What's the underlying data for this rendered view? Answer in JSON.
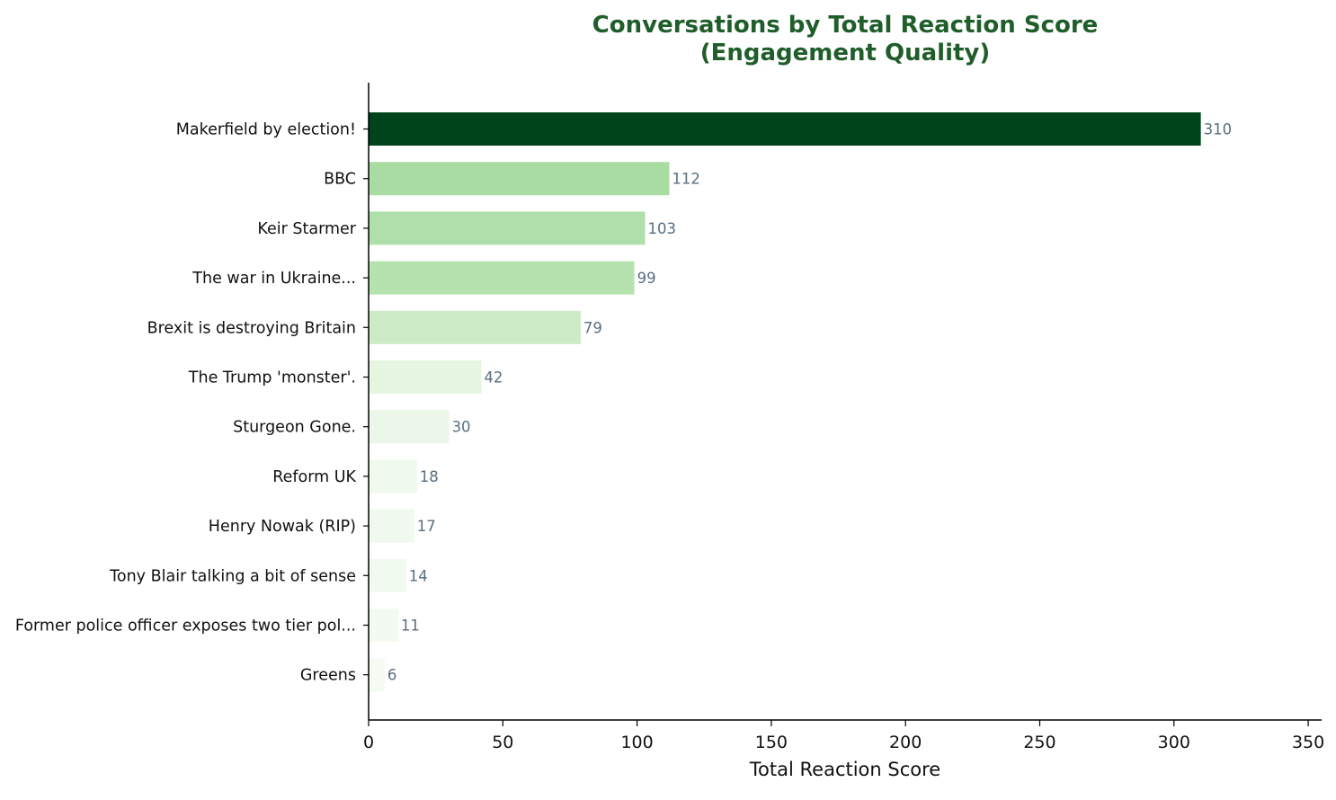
{
  "chart_data": {
    "type": "bar",
    "orientation": "horizontal",
    "title_lines": [
      "Conversations by Total Reaction Score",
      "(Engagement Quality)"
    ],
    "xlabel": "Total Reaction Score",
    "ylabel": "",
    "xlim": [
      0,
      355
    ],
    "xticks": [
      0,
      50,
      100,
      150,
      200,
      250,
      300,
      350
    ],
    "categories": [
      "Makerfield by election!",
      "BBC",
      "Keir Starmer",
      "The war in Ukraine...",
      "Brexit is destroying Britain",
      "The Trump 'monster'.",
      "Sturgeon Gone.",
      "Reform UK",
      "Henry Nowak (RIP)",
      "Tony Blair talking a bit of sense",
      "Former police officer exposes two tier pol...",
      "Greens"
    ],
    "values": [
      310,
      112,
      103,
      99,
      79,
      42,
      30,
      18,
      17,
      14,
      11,
      6
    ],
    "bar_colors": [
      "#00441b",
      "#a9dca3",
      "#afdfab",
      "#b6e2b0",
      "#cbeac5",
      "#e5f5e0",
      "#ebf7e8",
      "#eff9ec",
      "#f0f9ed",
      "#f1faee",
      "#f3faf0",
      "#f5fbf2"
    ],
    "colors": {
      "title": "#1f5e2a",
      "value_label": "#5a6e7f",
      "axis": "#000000"
    },
    "grid": false,
    "legend": "none"
  }
}
